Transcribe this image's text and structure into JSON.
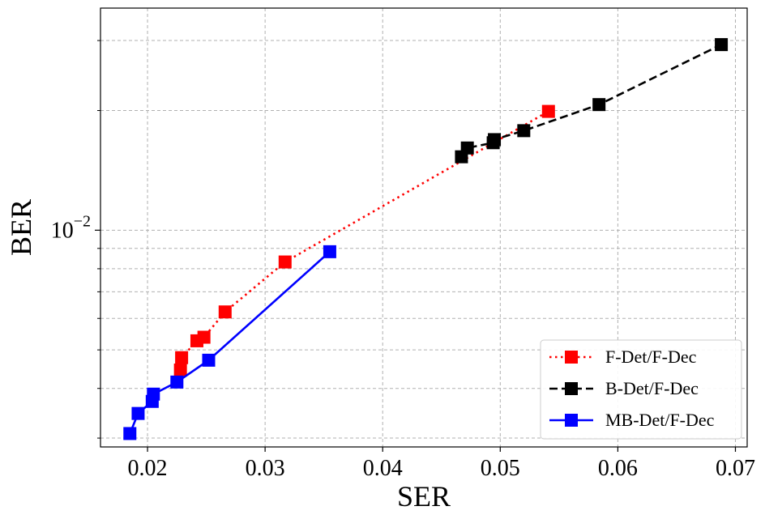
{
  "chart_data": {
    "type": "line",
    "xlabel": "SER",
    "ylabel": "BER",
    "x_scale": "linear",
    "y_scale": "log",
    "xlim": [
      0.016,
      0.071
    ],
    "ylim": [
      0.00285,
      0.0362
    ],
    "x_ticks": [
      0.02,
      0.03,
      0.04,
      0.05,
      0.06,
      0.07
    ],
    "x_tick_labels": [
      "0.02",
      "0.03",
      "0.04",
      "0.05",
      "0.06",
      "0.07"
    ],
    "y_major_ticks": [
      0.01
    ],
    "y_major_tick_label": {
      "base": "10",
      "exponent": "−2"
    },
    "y_minor_ticks": [
      0.003,
      0.004,
      0.005,
      0.006,
      0.007,
      0.008,
      0.009,
      0.02,
      0.03
    ],
    "grid": true,
    "legend_position": "lower-right",
    "series": [
      {
        "name": "F-Det/F-Dec",
        "color": "#ff0000",
        "line_style": "dotted",
        "marker": "square",
        "x": [
          0.0228,
          0.0229,
          0.0242,
          0.0248,
          0.0266,
          0.0317,
          0.0541
        ],
        "y": [
          0.00445,
          0.00478,
          0.00527,
          0.00538,
          0.00623,
          0.00832,
          0.0199
        ]
      },
      {
        "name": "B-Det/F-Dec",
        "color": "#000000",
        "line_style": "dashed",
        "marker": "square",
        "x": [
          0.0467,
          0.0472,
          0.0494,
          0.0495,
          0.052,
          0.0584,
          0.0688
        ],
        "y": [
          0.0153,
          0.0161,
          0.0166,
          0.0169,
          0.0178,
          0.0207,
          0.0293
        ]
      },
      {
        "name": "MB-Det/F-Dec",
        "color": "#0000ff",
        "line_style": "solid",
        "marker": "square",
        "x": [
          0.0185,
          0.0192,
          0.0204,
          0.0205,
          0.0225,
          0.0252,
          0.0355
        ],
        "y": [
          0.00308,
          0.00346,
          0.00371,
          0.00387,
          0.00415,
          0.00471,
          0.00883
        ]
      }
    ]
  }
}
